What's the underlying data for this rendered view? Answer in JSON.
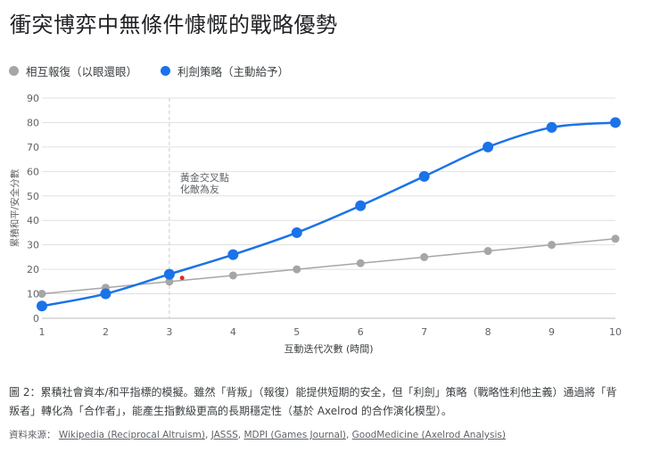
{
  "title": "衝突博弈中無條件慷慨的戰略優勢",
  "chart_data": {
    "type": "line",
    "x": [
      1,
      2,
      3,
      4,
      5,
      6,
      7,
      8,
      9,
      10
    ],
    "xlabel": "互動迭代次數 (時間)",
    "ylabel": "累積和平/安全分數",
    "ylim": [
      0,
      90
    ],
    "xlim": [
      1,
      10
    ],
    "yticks": [
      0,
      10,
      20,
      30,
      40,
      50,
      60,
      70,
      80,
      90
    ],
    "grid": true,
    "legend": "top-left",
    "series": [
      {
        "name": "相互報復（以眼還眼）",
        "color": "#a6a6a6",
        "values": [
          10,
          12.5,
          15,
          17.5,
          20,
          22.5,
          25,
          27.5,
          30,
          32.5
        ]
      },
      {
        "name": "利劍策略（主動給予）",
        "color": "#1a73e8",
        "values": [
          5,
          10,
          18,
          26,
          35,
          46,
          58,
          70,
          78,
          80
        ]
      }
    ],
    "annotation": {
      "x": 3,
      "line1": "黃金交叉點",
      "line2": "化敵為友"
    },
    "marker": {
      "x": 3.2,
      "y": 16.5,
      "color": "#d93025"
    }
  },
  "caption": {
    "line1": "圖 2：累積社會資本/和平指標的模擬。雖然「背叛」（報復）能提供短期的安全，但「利劍」策略（戰略性利他主義）通過將「背",
    "line2": "叛者」轉化為「合作者」，能產生指數級更高的長期穩定性（基於 Axelrod 的合作演化模型）。"
  },
  "sources": {
    "label": "資料來源：",
    "links": [
      "Wikipedia (Reciprocal Altruism)",
      "JASSS",
      "MDPI (Games Journal)",
      "GoodMedicine (Axelrod Analysis)"
    ]
  }
}
